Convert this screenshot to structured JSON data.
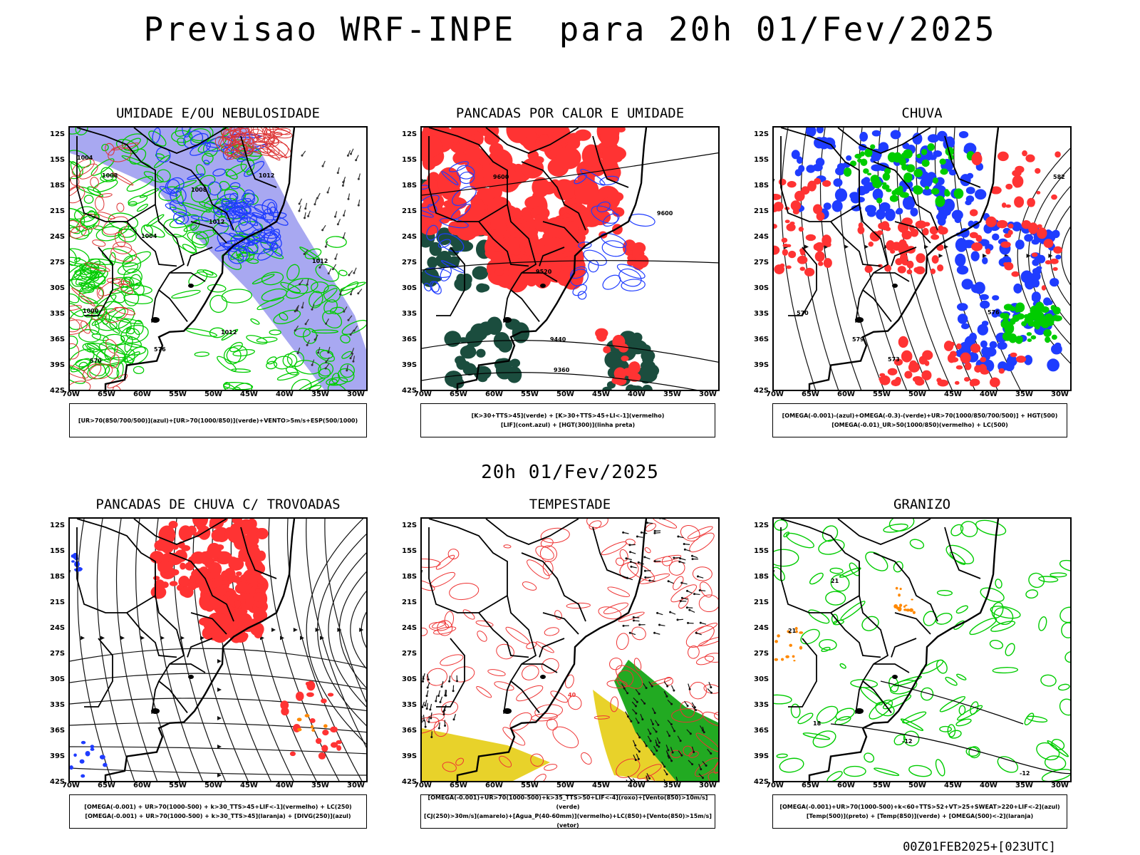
{
  "title": "Previsao WRF-INPE  para 20h 01/Fev/2025",
  "mid_time": "20h 01/Fev/2025",
  "footer": "00Z01FEB2025+[023UTC]",
  "lat_labels": [
    "12S",
    "15S",
    "18S",
    "21S",
    "24S",
    "27S",
    "30S",
    "33S",
    "36S",
    "39S",
    "42S"
  ],
  "lon_labels": [
    "70W",
    "65W",
    "60W",
    "55W",
    "50W",
    "45W",
    "40W",
    "35W",
    "30W"
  ],
  "colors": {
    "blue": "#1f3cff",
    "green": "#00cc00",
    "red": "#ff3333",
    "darkgreen": "#1b4d3e",
    "lavender": "#9999ee",
    "yellow": "#e8d22a",
    "orange": "#ff8800"
  },
  "panels": [
    {
      "title": "UMIDADE E/OU NEBULOSIDADE",
      "legend": [
        "[UR>70(850/700/500)](azul)+[UR>70(1000/850)](verde)+VENTO>5m/s+ESP(500/1000)"
      ],
      "contour_labels": [
        "1004",
        "1008",
        "1012",
        "1000",
        "570",
        "576"
      ]
    },
    {
      "title": "PANCADAS POR CALOR E UMIDADE",
      "legend": [
        "[K>30+TTS>45](verde) + [K>30+TTS>45+LI<-1](vermelho)",
        "[LIF](cont.azul) + [HGT(300)](linha preta)"
      ],
      "contour_labels": [
        "9600",
        "9520",
        "9440",
        "9360"
      ]
    },
    {
      "title": "CHUVA",
      "legend": [
        "[OMEGA(-0.001)-(azul)+OMEGA(-0.3)-(verde)+UR>70(1000/850/700/500)] + HGT(500)",
        "[OMEGA(-0.01)_UR>50(1000/850)(vermelho) + LC(500)"
      ],
      "contour_labels": [
        "582",
        "576",
        "570",
        "573",
        "579"
      ]
    },
    {
      "title": "PANCADAS DE CHUVA C/ TROVOADAS",
      "legend": [
        "[OMEGA(-0.001) + UR>70(1000-500) + k>30_TTS>45+LIF<-1](vermelho) + LC(250)",
        "[OMEGA(-0.001) + UR>70(1000-500) + k>30_TTS>45](laranja) + [DIVG(250)](azul)"
      ],
      "contour_labels": []
    },
    {
      "title": "TEMPESTADE",
      "legend": [
        "[OMEGA(-0.001)+UR>70(1000-500)+k>35_TTS>50+LIF<-4](roxo)+[Vento(850)>10m/s](verde)",
        "[CJ(250)>30m/s](amarelo)+[Agua_P(40-60mm)](vermelho)+LC(850)+[Vento(850)>15m/s](vetor)"
      ],
      "contour_labels": [
        "40"
      ]
    },
    {
      "title": "GRANIZO",
      "legend": [
        "[OMEGA(-0.001)+UR>70(1000-500)+k<60+TTS>52+VT>25+SWEAT>220+LIF<-2](azul)",
        "[Temp(500)](preto) + [Temp(850)](verde) + [OMEGA(500)<-2](laranja)"
      ],
      "contour_labels": [
        "-12",
        "21",
        "18"
      ]
    }
  ]
}
